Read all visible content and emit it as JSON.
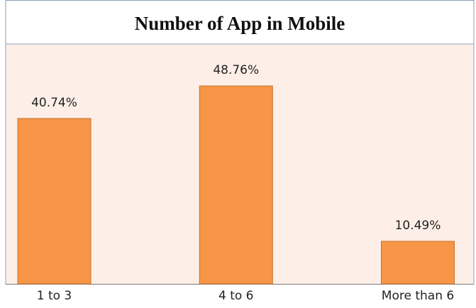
{
  "chart_data": {
    "type": "bar",
    "title": "Number of App in Mobile",
    "categories": [
      "1 to 3",
      "4 to 6",
      "More than 6"
    ],
    "values": [
      40.74,
      48.76,
      10.49
    ],
    "value_labels": [
      "40.74%",
      "48.76%",
      "10.49%"
    ],
    "color": "#f79646"
  }
}
